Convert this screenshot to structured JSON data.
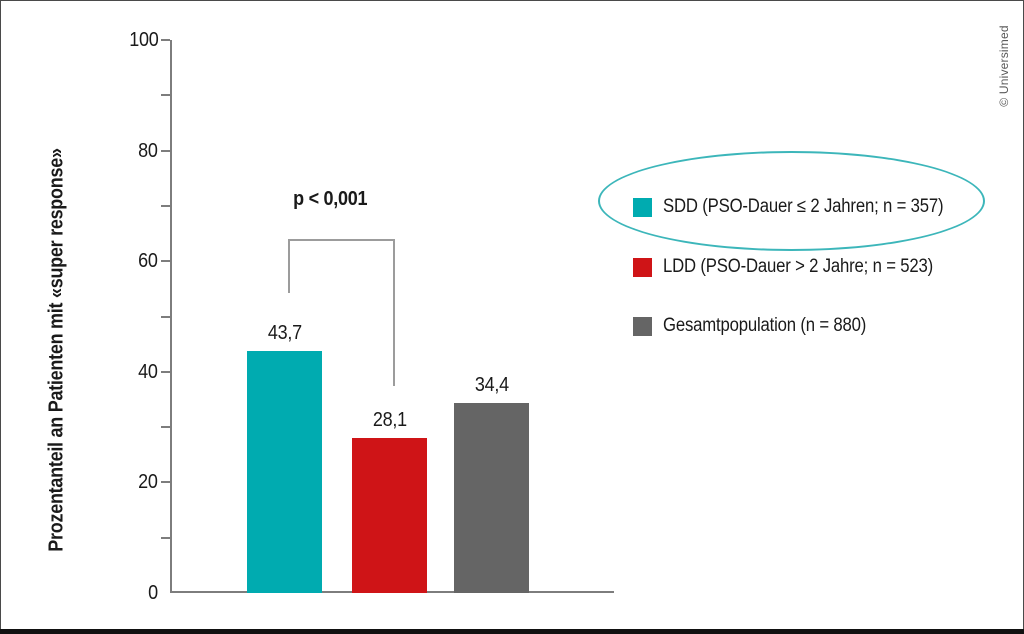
{
  "frame": {
    "credit": "© Universimed"
  },
  "chart_data": {
    "type": "bar",
    "title": "",
    "xlabel": "",
    "ylabel": "Prozentanteil an Patienten mit «super response»",
    "ylim": [
      0,
      100
    ],
    "ytick_major": [
      0,
      20,
      40,
      60,
      80,
      100
    ],
    "ytick_minor_step": 10,
    "grid": false,
    "legend_position": "right",
    "categories": [
      "SDD",
      "LDD",
      "Gesamt"
    ],
    "values": [
      43.7,
      28.1,
      34.4
    ],
    "value_labels": [
      "43,7",
      "28,1",
      "34,4"
    ],
    "bar_colors": [
      "#00abb0",
      "#cf1417",
      "#656565"
    ],
    "significance": {
      "label": "p < 0,001",
      "between": [
        "SDD",
        "LDD"
      ]
    },
    "legend": [
      {
        "label": "SDD (PSO-Dauer ≤ 2 Jahren; n = 357)",
        "color": "#00abb0",
        "highlighted": true
      },
      {
        "label": "LDD (PSO-Dauer > 2 Jahre; n = 523)",
        "color": "#cf1417",
        "highlighted": false
      },
      {
        "label": "Gesamtpopulation (n = 880)",
        "color": "#656565",
        "highlighted": false
      }
    ],
    "legend_highlight_color": "#3cb6ba"
  }
}
